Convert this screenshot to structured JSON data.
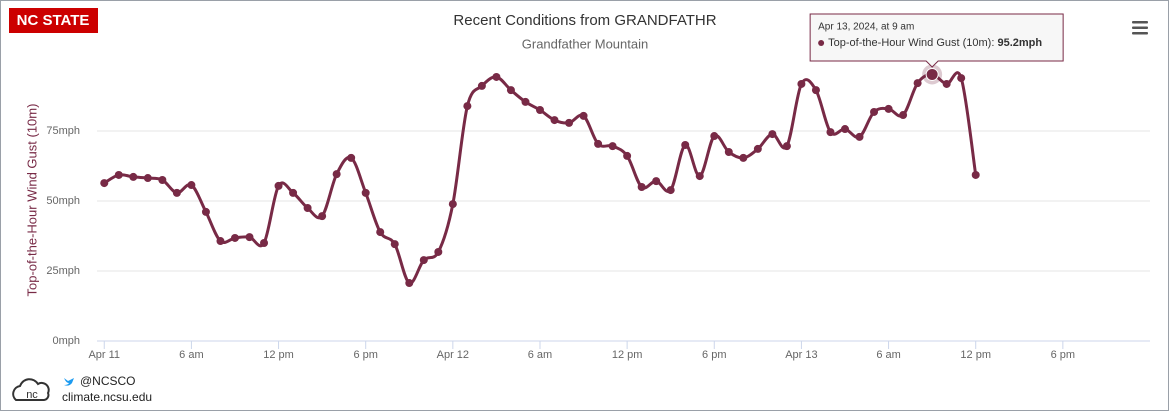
{
  "brand": {
    "logo": "NC STATE",
    "twitter": "@NCSCO",
    "site": "climate.ncsu.edu"
  },
  "chart_data": {
    "type": "line",
    "title": "Recent Conditions from GRANDFATHR",
    "subtitle": "Grandfather Mountain",
    "y_label": "Top-of-the-Hour Wind Gust (10m)",
    "x": [
      0,
      1,
      2,
      3,
      4,
      5,
      6,
      7,
      8,
      9,
      10,
      11,
      12,
      13,
      14,
      15,
      16,
      17,
      18,
      19,
      20,
      21,
      22,
      23,
      24,
      25,
      26,
      27,
      28,
      29,
      30,
      31,
      32,
      33,
      34,
      35,
      36,
      37,
      38,
      39,
      40,
      41,
      42,
      43,
      44,
      45,
      46,
      47,
      48,
      49,
      50,
      51,
      52,
      53,
      54,
      55,
      56,
      57,
      58,
      59,
      60
    ],
    "series": [
      {
        "name": "Top-of-the-Hour Wind Gust (10m)",
        "color": "#782a46",
        "values": [
          56.4,
          59.3,
          58.6,
          58.2,
          57.5,
          52.9,
          55.7,
          46.1,
          35.7,
          36.8,
          37.1,
          35,
          55.4,
          52.9,
          47.5,
          44.6,
          59.6,
          65.4,
          52.9,
          38.9,
          34.6,
          20.7,
          28.9,
          31.8,
          48.9,
          83.9,
          91.1,
          94.3,
          89.6,
          85.4,
          82.5,
          78.9,
          77.9,
          80.4,
          70.4,
          69.6,
          66.1,
          55,
          57.1,
          53.9,
          70,
          58.9,
          73.2,
          67.5,
          65.4,
          68.6,
          73.9,
          69.6,
          91.8,
          89.6,
          74.6,
          75.7,
          72.9,
          81.8,
          82.9,
          80.7,
          92.1,
          95.2,
          91.8,
          93.9,
          59.3
        ],
        "value_labels": [
          null,
          null,
          null,
          null,
          null,
          null,
          null,
          null,
          null,
          null,
          null,
          null,
          null,
          null,
          null,
          null,
          null,
          null,
          null,
          null,
          null,
          null,
          null,
          null,
          null,
          null,
          null,
          null,
          null,
          null,
          null,
          null,
          null,
          null,
          null,
          null,
          null,
          null,
          null,
          null,
          null,
          null,
          null,
          null,
          null,
          null,
          null,
          null,
          null,
          null,
          null,
          null,
          null,
          null,
          null,
          null,
          null,
          "95.2mph",
          null,
          null,
          null
        ]
      }
    ],
    "tooltip": {
      "date": "Apr 13, 2024, at 9 am",
      "label": "Top-of-the-Hour Wind Gust (10m):"
    },
    "xlim": [
      -0.5,
      72
    ],
    "xticks": [
      {
        "value": 0,
        "label": "Apr 11"
      },
      {
        "value": 6,
        "label": "6 am"
      },
      {
        "value": 12,
        "label": "12 pm"
      },
      {
        "value": 18,
        "label": "6 pm"
      },
      {
        "value": 24,
        "label": "Apr 12"
      },
      {
        "value": 30,
        "label": "6 am"
      },
      {
        "value": 36,
        "label": "12 pm"
      },
      {
        "value": 42,
        "label": "6 pm"
      },
      {
        "value": 48,
        "label": "Apr 13"
      },
      {
        "value": 54,
        "label": "6 am"
      },
      {
        "value": 60,
        "label": "12 pm"
      },
      {
        "value": 66,
        "label": "6 pm"
      }
    ],
    "ylim": [
      0,
      100
    ],
    "yticks": [
      {
        "value": 0,
        "label": "0mph"
      },
      {
        "value": 25,
        "label": "25mph"
      },
      {
        "value": 50,
        "label": "50mph"
      },
      {
        "value": 75,
        "label": "75mph"
      }
    ],
    "grid": true
  }
}
